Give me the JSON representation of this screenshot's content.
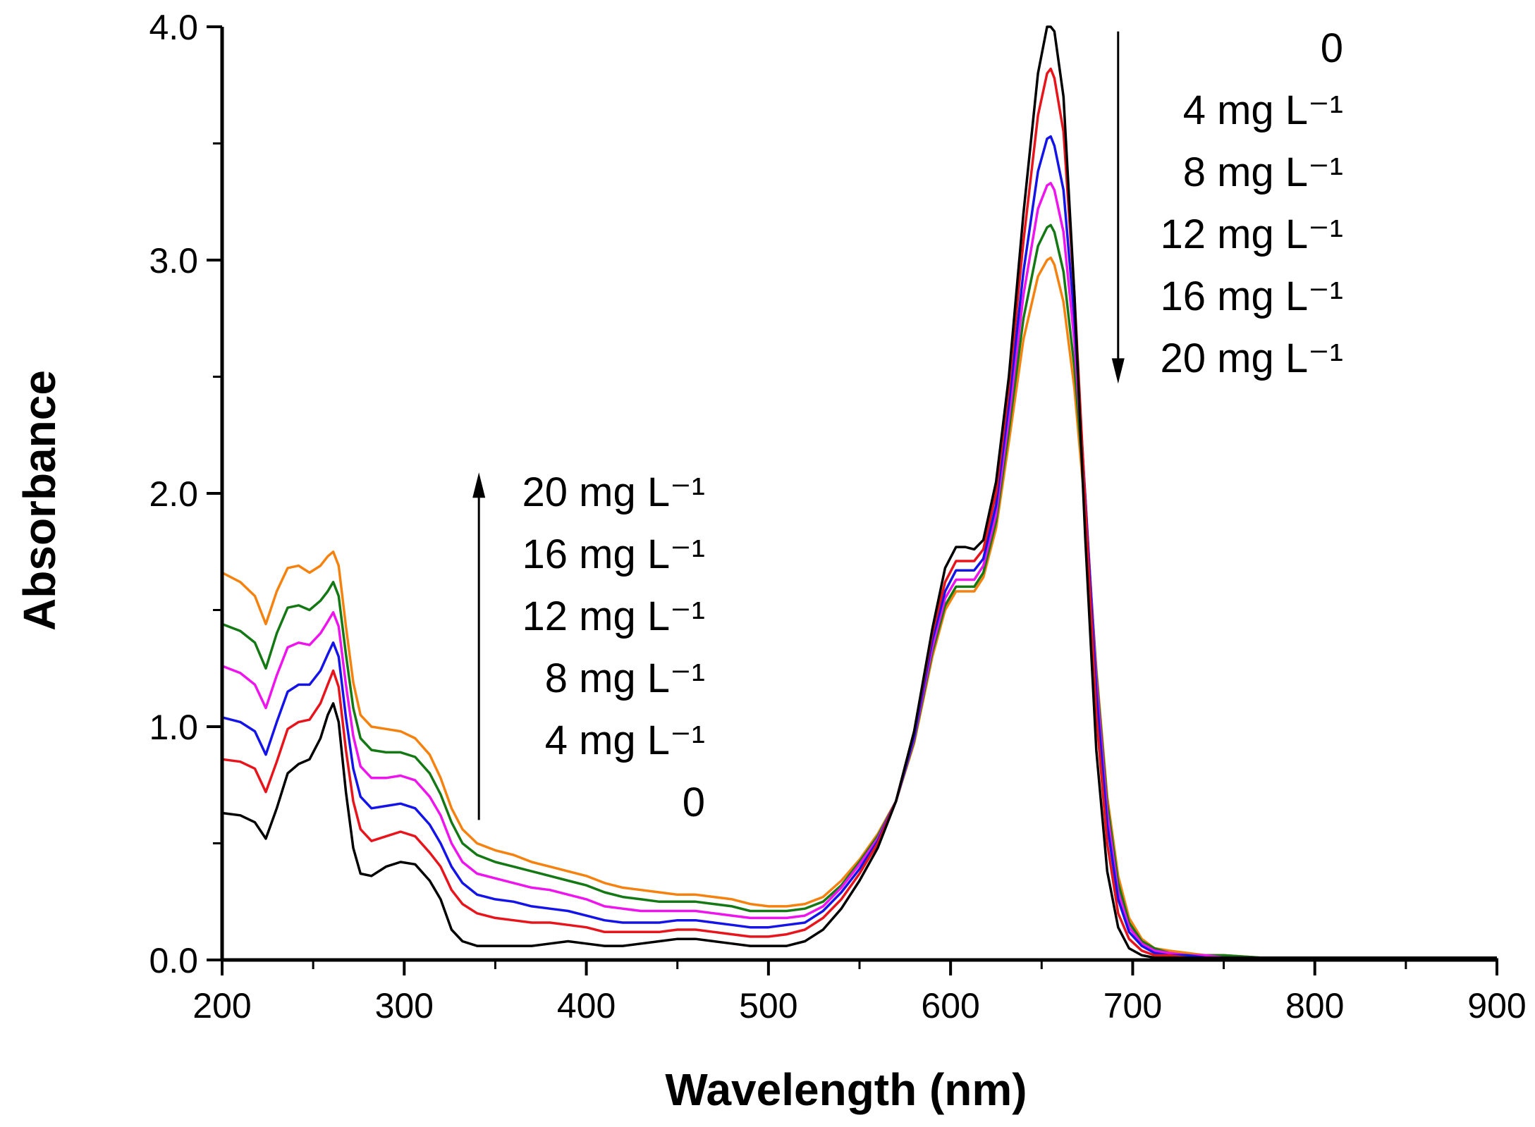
{
  "chart_data": {
    "type": "line",
    "title": "",
    "xlabel": "Wavelength (nm)",
    "ylabel": "Absorbance",
    "xlim": [
      200,
      900
    ],
    "ylim": [
      0,
      4.0
    ],
    "x_ticks": [
      200,
      300,
      400,
      500,
      600,
      700,
      800,
      900
    ],
    "y_ticks": [
      0.0,
      1.0,
      2.0,
      3.0,
      4.0
    ],
    "y_tick_labels": [
      "0.0",
      "1.0",
      "2.0",
      "3.0",
      "4.0"
    ],
    "grid": false,
    "series": [
      {
        "name": "0",
        "color": "#000000",
        "x": [
          200,
          210,
          218,
          224,
          230,
          236,
          242,
          248,
          254,
          258,
          261,
          264,
          268,
          272,
          276,
          282,
          290,
          298,
          306,
          314,
          320,
          326,
          332,
          340,
          350,
          360,
          370,
          380,
          390,
          400,
          410,
          420,
          430,
          440,
          450,
          460,
          470,
          480,
          490,
          500,
          510,
          520,
          530,
          540,
          550,
          560,
          570,
          580,
          590,
          597,
          603,
          608,
          613,
          618,
          625,
          632,
          640,
          648,
          653,
          655,
          657,
          662,
          668,
          674,
          680,
          686,
          692,
          698,
          705,
          712,
          720,
          730,
          740,
          750,
          770,
          800,
          830,
          860,
          900
        ],
        "y": [
          0.63,
          0.62,
          0.59,
          0.52,
          0.65,
          0.8,
          0.84,
          0.86,
          0.95,
          1.05,
          1.1,
          1.02,
          0.72,
          0.48,
          0.37,
          0.36,
          0.4,
          0.42,
          0.41,
          0.34,
          0.26,
          0.13,
          0.08,
          0.06,
          0.06,
          0.06,
          0.06,
          0.07,
          0.08,
          0.07,
          0.06,
          0.06,
          0.07,
          0.08,
          0.09,
          0.09,
          0.08,
          0.07,
          0.06,
          0.06,
          0.06,
          0.08,
          0.13,
          0.22,
          0.34,
          0.48,
          0.68,
          0.98,
          1.42,
          1.68,
          1.77,
          1.77,
          1.76,
          1.8,
          2.05,
          2.5,
          3.2,
          3.8,
          4.0,
          4.0,
          3.98,
          3.7,
          2.85,
          1.8,
          0.9,
          0.38,
          0.14,
          0.05,
          0.02,
          0.01,
          0.01,
          0.01,
          0.01,
          0.01,
          0.01,
          0.01,
          0.01,
          0.01,
          0.01
        ]
      },
      {
        "name": "4 mg L⁻¹",
        "color": "#e8141c",
        "x": [
          200,
          210,
          218,
          224,
          230,
          236,
          242,
          248,
          254,
          258,
          261,
          264,
          268,
          272,
          276,
          282,
          290,
          298,
          306,
          314,
          320,
          326,
          332,
          340,
          350,
          360,
          370,
          380,
          390,
          400,
          410,
          420,
          430,
          440,
          450,
          460,
          470,
          480,
          490,
          500,
          510,
          520,
          530,
          540,
          550,
          560,
          570,
          580,
          590,
          597,
          603,
          608,
          613,
          618,
          625,
          632,
          640,
          648,
          653,
          655,
          657,
          662,
          668,
          674,
          680,
          686,
          692,
          698,
          705,
          712,
          720,
          730,
          740,
          750,
          770,
          800,
          830,
          860,
          900
        ],
        "y": [
          0.86,
          0.85,
          0.82,
          0.72,
          0.85,
          0.99,
          1.02,
          1.03,
          1.1,
          1.18,
          1.24,
          1.17,
          0.9,
          0.68,
          0.56,
          0.51,
          0.53,
          0.55,
          0.53,
          0.46,
          0.4,
          0.3,
          0.24,
          0.2,
          0.18,
          0.17,
          0.16,
          0.16,
          0.15,
          0.14,
          0.12,
          0.12,
          0.12,
          0.12,
          0.13,
          0.13,
          0.12,
          0.11,
          0.1,
          0.1,
          0.11,
          0.13,
          0.18,
          0.26,
          0.37,
          0.5,
          0.68,
          0.98,
          1.4,
          1.62,
          1.71,
          1.71,
          1.71,
          1.76,
          2.0,
          2.45,
          3.08,
          3.62,
          3.8,
          3.82,
          3.78,
          3.55,
          2.85,
          1.95,
          1.05,
          0.5,
          0.2,
          0.09,
          0.04,
          0.02,
          0.02,
          0.01,
          0.01,
          0.01,
          0.01,
          0.01,
          0.01,
          0.01,
          0.01
        ]
      },
      {
        "name": "8 mg L⁻¹",
        "color": "#1414e8",
        "x": [
          200,
          210,
          218,
          224,
          230,
          236,
          242,
          248,
          254,
          258,
          261,
          264,
          268,
          272,
          276,
          282,
          290,
          298,
          306,
          314,
          320,
          326,
          332,
          340,
          350,
          360,
          370,
          380,
          390,
          400,
          410,
          420,
          430,
          440,
          450,
          460,
          470,
          480,
          490,
          500,
          510,
          520,
          530,
          540,
          550,
          560,
          570,
          580,
          590,
          597,
          603,
          608,
          613,
          618,
          625,
          632,
          640,
          648,
          653,
          655,
          657,
          662,
          668,
          674,
          680,
          686,
          692,
          698,
          705,
          712,
          720,
          730,
          740,
          750,
          770,
          800,
          830,
          860,
          900
        ],
        "y": [
          1.04,
          1.02,
          0.98,
          0.88,
          1.02,
          1.15,
          1.18,
          1.18,
          1.24,
          1.31,
          1.36,
          1.3,
          1.04,
          0.82,
          0.7,
          0.65,
          0.66,
          0.67,
          0.65,
          0.58,
          0.5,
          0.4,
          0.33,
          0.28,
          0.26,
          0.25,
          0.23,
          0.22,
          0.21,
          0.19,
          0.17,
          0.16,
          0.16,
          0.16,
          0.17,
          0.17,
          0.16,
          0.15,
          0.14,
          0.14,
          0.15,
          0.16,
          0.21,
          0.29,
          0.39,
          0.51,
          0.68,
          0.96,
          1.37,
          1.58,
          1.67,
          1.67,
          1.67,
          1.72,
          1.95,
          2.38,
          2.95,
          3.38,
          3.52,
          3.53,
          3.49,
          3.3,
          2.75,
          1.98,
          1.15,
          0.58,
          0.26,
          0.12,
          0.06,
          0.03,
          0.02,
          0.02,
          0.01,
          0.01,
          0.01,
          0.01,
          0.01,
          0.01,
          0.01
        ]
      },
      {
        "name": "12 mg L⁻¹",
        "color": "#ee14ee",
        "x": [
          200,
          210,
          218,
          224,
          230,
          236,
          242,
          248,
          254,
          258,
          261,
          264,
          268,
          272,
          276,
          282,
          290,
          298,
          306,
          314,
          320,
          326,
          332,
          340,
          350,
          360,
          370,
          380,
          390,
          400,
          410,
          420,
          430,
          440,
          450,
          460,
          470,
          480,
          490,
          500,
          510,
          520,
          530,
          540,
          550,
          560,
          570,
          580,
          590,
          597,
          603,
          608,
          613,
          618,
          625,
          632,
          640,
          648,
          653,
          655,
          657,
          662,
          668,
          674,
          680,
          686,
          692,
          698,
          705,
          712,
          720,
          730,
          740,
          750,
          770,
          800,
          830,
          860,
          900
        ],
        "y": [
          1.26,
          1.23,
          1.18,
          1.08,
          1.22,
          1.34,
          1.36,
          1.35,
          1.4,
          1.45,
          1.49,
          1.43,
          1.18,
          0.96,
          0.83,
          0.78,
          0.78,
          0.79,
          0.77,
          0.7,
          0.62,
          0.5,
          0.42,
          0.37,
          0.35,
          0.33,
          0.31,
          0.3,
          0.28,
          0.26,
          0.23,
          0.22,
          0.21,
          0.21,
          0.21,
          0.21,
          0.2,
          0.19,
          0.18,
          0.18,
          0.18,
          0.19,
          0.23,
          0.31,
          0.41,
          0.52,
          0.68,
          0.95,
          1.34,
          1.55,
          1.63,
          1.63,
          1.63,
          1.69,
          1.91,
          2.32,
          2.85,
          3.22,
          3.32,
          3.33,
          3.3,
          3.12,
          2.65,
          1.98,
          1.2,
          0.63,
          0.29,
          0.14,
          0.07,
          0.04,
          0.03,
          0.02,
          0.02,
          0.01,
          0.01,
          0.01,
          0.01,
          0.01,
          0.01
        ]
      },
      {
        "name": "16 mg L⁻¹",
        "color": "#147814",
        "x": [
          200,
          210,
          218,
          224,
          230,
          236,
          242,
          248,
          254,
          258,
          261,
          264,
          268,
          272,
          276,
          282,
          290,
          298,
          306,
          314,
          320,
          326,
          332,
          340,
          350,
          360,
          370,
          380,
          390,
          400,
          410,
          420,
          430,
          440,
          450,
          460,
          470,
          480,
          490,
          500,
          510,
          520,
          530,
          540,
          550,
          560,
          570,
          580,
          590,
          597,
          603,
          608,
          613,
          618,
          625,
          632,
          640,
          648,
          653,
          655,
          657,
          662,
          668,
          674,
          680,
          686,
          692,
          698,
          705,
          712,
          720,
          730,
          740,
          750,
          770,
          800,
          830,
          860,
          900
        ],
        "y": [
          1.44,
          1.41,
          1.36,
          1.25,
          1.4,
          1.51,
          1.52,
          1.5,
          1.54,
          1.58,
          1.62,
          1.56,
          1.31,
          1.08,
          0.95,
          0.9,
          0.89,
          0.89,
          0.87,
          0.8,
          0.71,
          0.59,
          0.5,
          0.45,
          0.42,
          0.4,
          0.38,
          0.36,
          0.34,
          0.32,
          0.29,
          0.27,
          0.26,
          0.25,
          0.25,
          0.25,
          0.24,
          0.23,
          0.21,
          0.21,
          0.21,
          0.22,
          0.25,
          0.32,
          0.42,
          0.53,
          0.68,
          0.94,
          1.32,
          1.52,
          1.6,
          1.6,
          1.6,
          1.66,
          1.88,
          2.27,
          2.75,
          3.06,
          3.14,
          3.15,
          3.12,
          2.95,
          2.54,
          1.96,
          1.23,
          0.67,
          0.33,
          0.16,
          0.08,
          0.05,
          0.03,
          0.02,
          0.02,
          0.02,
          0.01,
          0.01,
          0.01,
          0.01,
          0.01
        ]
      },
      {
        "name": "20 mg L⁻¹",
        "color": "#f5820f",
        "x": [
          200,
          210,
          218,
          224,
          230,
          236,
          242,
          248,
          254,
          258,
          261,
          264,
          268,
          272,
          276,
          282,
          290,
          298,
          306,
          314,
          320,
          326,
          332,
          340,
          350,
          360,
          370,
          380,
          390,
          400,
          410,
          420,
          430,
          440,
          450,
          460,
          470,
          480,
          490,
          500,
          510,
          520,
          530,
          540,
          550,
          560,
          570,
          580,
          590,
          597,
          603,
          608,
          613,
          618,
          625,
          632,
          640,
          648,
          653,
          655,
          657,
          662,
          668,
          674,
          680,
          686,
          692,
          698,
          705,
          712,
          720,
          730,
          740,
          750,
          770,
          800,
          830,
          860,
          900
        ],
        "y": [
          1.66,
          1.62,
          1.56,
          1.44,
          1.58,
          1.68,
          1.69,
          1.66,
          1.69,
          1.73,
          1.75,
          1.69,
          1.43,
          1.19,
          1.05,
          1.0,
          0.99,
          0.98,
          0.95,
          0.88,
          0.78,
          0.65,
          0.56,
          0.5,
          0.47,
          0.45,
          0.42,
          0.4,
          0.38,
          0.36,
          0.33,
          0.31,
          0.3,
          0.29,
          0.28,
          0.28,
          0.27,
          0.26,
          0.24,
          0.23,
          0.23,
          0.24,
          0.27,
          0.34,
          0.43,
          0.54,
          0.68,
          0.93,
          1.3,
          1.5,
          1.58,
          1.58,
          1.58,
          1.64,
          1.85,
          2.22,
          2.66,
          2.93,
          3.0,
          3.01,
          2.98,
          2.82,
          2.45,
          1.92,
          1.25,
          0.7,
          0.36,
          0.18,
          0.09,
          0.05,
          0.04,
          0.03,
          0.02,
          0.02,
          0.01,
          0.01,
          0.01,
          0.01,
          0.01
        ]
      }
    ],
    "annotations": {
      "decreasing_arrow": {
        "x": 692,
        "y_from": 3.98,
        "y_to": 2.47
      },
      "decreasing_labels": [
        "0",
        "4 mg L⁻¹",
        "8 mg L⁻¹",
        "12 mg L⁻¹",
        "16 mg L⁻¹",
        "20 mg L⁻¹"
      ],
      "increasing_arrow": {
        "x": 341,
        "y_from": 0.6,
        "y_to": 2.09
      },
      "increasing_labels": [
        "20 mg L⁻¹",
        "16 mg L⁻¹",
        "12 mg L⁻¹",
        "8 mg L⁻¹",
        "4 mg L⁻¹",
        "0"
      ]
    }
  }
}
